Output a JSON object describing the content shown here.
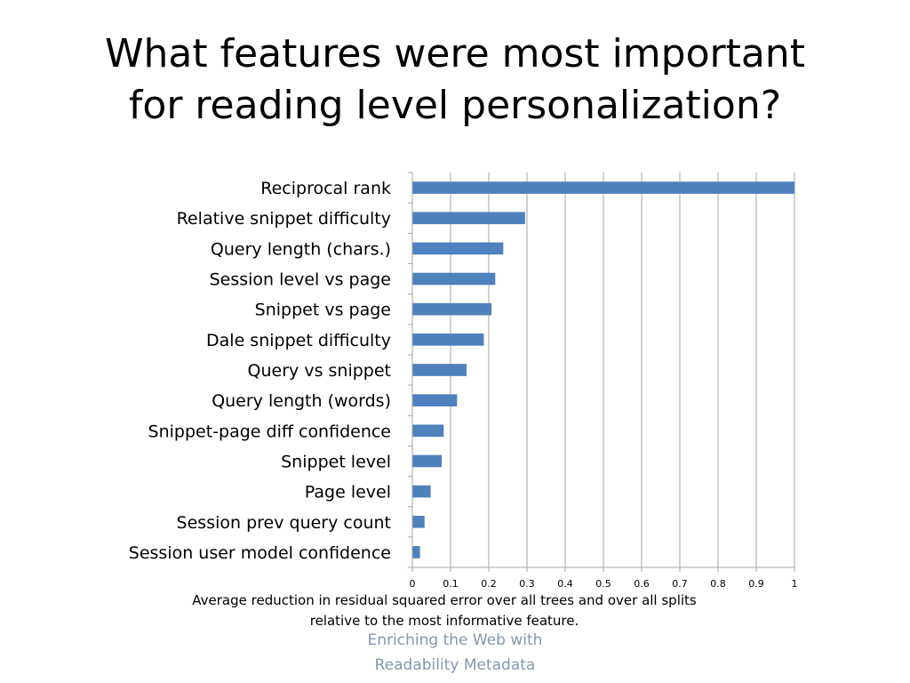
{
  "slide": {
    "title_line1": "What features were most important",
    "title_line2": "for reading level personalization?",
    "footer_line1": "Enriching the Web with",
    "footer_line2": "Readability Metadata"
  },
  "chart_data": {
    "type": "bar",
    "orientation": "horizontal",
    "title": "",
    "xlabel_line1": "Average reduction in residual squared error over all trees and over all splits",
    "xlabel_line2": "relative to the most informative feature.",
    "ylabel": "",
    "categories": [
      "Reciprocal rank",
      "Relative snippet difficulty",
      "Query length (chars.)",
      "Session level vs page",
      "Snippet vs page",
      "Dale snippet difficulty",
      "Query vs snippet",
      "Query length (words)",
      "Snippet-page diff confidence",
      "Snippet level",
      "Page level",
      "Session prev query count",
      "Session user model confidence"
    ],
    "values": [
      1.0,
      0.295,
      0.238,
      0.217,
      0.207,
      0.187,
      0.142,
      0.117,
      0.082,
      0.077,
      0.048,
      0.032,
      0.02
    ],
    "xlim": [
      0,
      1
    ],
    "xticks": [
      0,
      0.1,
      0.2,
      0.3,
      0.4,
      0.5,
      0.6,
      0.7,
      0.8,
      0.9,
      1
    ],
    "xtick_labels": [
      "0",
      "0.1",
      "0.2",
      "0.3",
      "0.4",
      "0.5",
      "0.6",
      "0.7",
      "0.8",
      "0.9",
      "1"
    ],
    "grid": "vertical",
    "bar_color": "#4f81bd",
    "grid_color": "#a6a6a6"
  }
}
